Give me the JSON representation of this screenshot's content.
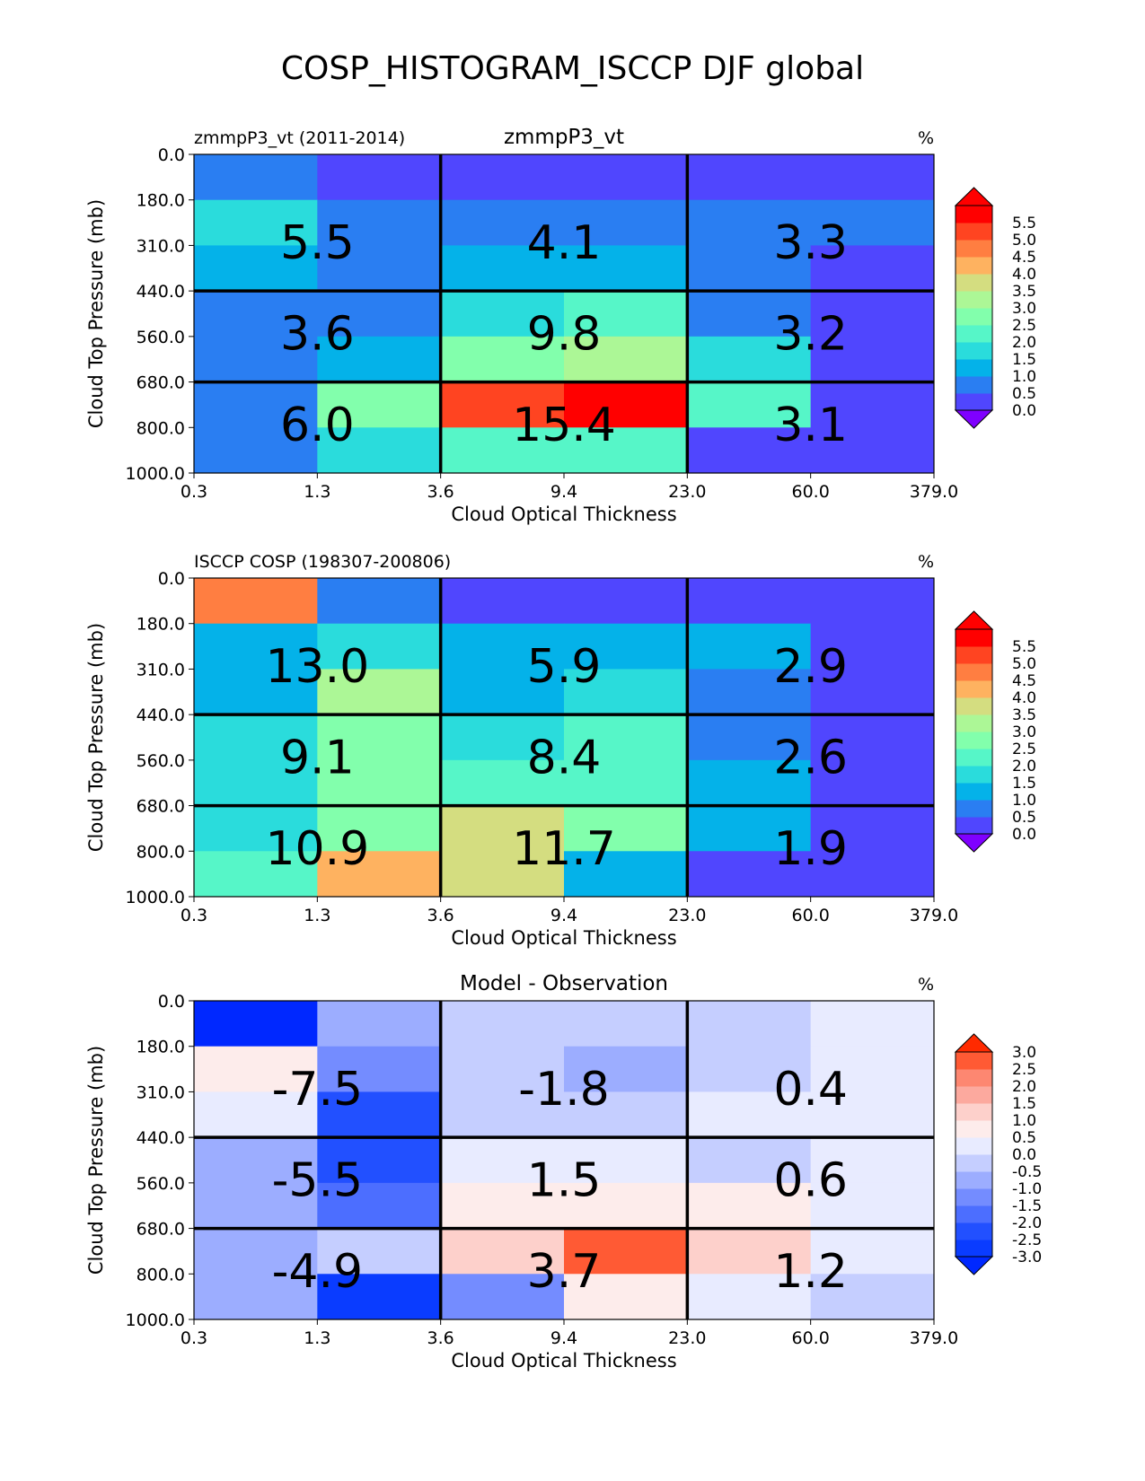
{
  "figure_title": "COSP_HISTOGRAM_ISCCP DJF global",
  "chart_data": [
    {
      "type": "heatmap",
      "left_title": "zmmpP3_vt (2011-2014)",
      "center_title": "zmmpP3_vt",
      "units": "%",
      "xlabel": "Cloud Optical Thickness",
      "ylabel": "Cloud Top Pressure (mb)",
      "x_ticks": [
        "0.3",
        "1.3",
        "3.6",
        "9.4",
        "23.0",
        "60.0",
        "379.0"
      ],
      "y_ticks": [
        "0.0",
        "180.0",
        "310.0",
        "440.0",
        "560.0",
        "680.0",
        "800.0",
        "1000.0"
      ],
      "values": [
        [
          0.8,
          0.3,
          0.3,
          0.3,
          0.3,
          0.3
        ],
        [
          1.9,
          0.8,
          0.8,
          0.8,
          0.8,
          0.8
        ],
        [
          1.4,
          0.8,
          1.3,
          1.3,
          0.8,
          0.3
        ],
        [
          0.8,
          0.8,
          1.9,
          2.4,
          0.8,
          0.3
        ],
        [
          0.8,
          1.3,
          2.8,
          3.3,
          1.9,
          0.3
        ],
        [
          0.8,
          2.8,
          5.3,
          5.8,
          2.4,
          0.3
        ],
        [
          0.8,
          1.9,
          2.3,
          2.4,
          0.3,
          0.3
        ]
      ],
      "group_totals": [
        [
          5.5,
          4.1,
          3.3
        ],
        [
          3.6,
          9.8,
          3.2
        ],
        [
          6.0,
          15.4,
          3.1
        ]
      ],
      "colorbar": {
        "levels": [
          "0.0",
          "0.5",
          "1.0",
          "1.5",
          "2.0",
          "2.5",
          "3.0",
          "3.5",
          "4.0",
          "4.5",
          "5.0",
          "5.5"
        ],
        "colors": [
          "#5046fe",
          "#2a7ef2",
          "#04b2e9",
          "#2adcdc",
          "#56f6c8",
          "#82ffac",
          "#acf796",
          "#d4dd80",
          "#feb260",
          "#ff7e41",
          "#ff4421",
          "#ff0000"
        ],
        "under": "#7f00ff",
        "over": "#ff0000",
        "vmin": 0.0,
        "step": 0.5
      }
    },
    {
      "type": "heatmap",
      "left_title": "ISCCP COSP (198307-200806)",
      "center_title": "",
      "units": "%",
      "xlabel": "Cloud Optical Thickness",
      "ylabel": "Cloud Top Pressure (mb)",
      "x_ticks": [
        "0.3",
        "1.3",
        "3.6",
        "9.4",
        "23.0",
        "60.0",
        "379.0"
      ],
      "y_ticks": [
        "0.0",
        "180.0",
        "310.0",
        "440.0",
        "560.0",
        "680.0",
        "800.0",
        "1000.0"
      ],
      "values": [
        [
          4.8,
          0.8,
          0.3,
          0.3,
          0.3,
          0.3
        ],
        [
          1.3,
          1.8,
          1.3,
          1.3,
          1.3,
          0.3
        ],
        [
          1.3,
          3.3,
          1.3,
          1.8,
          0.8,
          0.3
        ],
        [
          1.8,
          2.8,
          1.8,
          2.3,
          0.8,
          0.3
        ],
        [
          1.8,
          2.8,
          2.3,
          2.3,
          1.3,
          0.3
        ],
        [
          1.8,
          2.8,
          3.8,
          2.8,
          1.3,
          0.3
        ],
        [
          2.3,
          4.3,
          3.8,
          1.3,
          0.3,
          0.3
        ]
      ],
      "group_totals": [
        [
          13.0,
          5.9,
          2.9
        ],
        [
          9.1,
          8.4,
          2.6
        ],
        [
          10.9,
          11.7,
          1.9
        ]
      ],
      "colorbar": {
        "levels": [
          "0.0",
          "0.5",
          "1.0",
          "1.5",
          "2.0",
          "2.5",
          "3.0",
          "3.5",
          "4.0",
          "4.5",
          "5.0",
          "5.5"
        ],
        "colors": [
          "#5046fe",
          "#2a7ef2",
          "#04b2e9",
          "#2adcdc",
          "#56f6c8",
          "#82ffac",
          "#acf796",
          "#d4dd80",
          "#feb260",
          "#ff7e41",
          "#ff4421",
          "#ff0000"
        ],
        "under": "#7f00ff",
        "over": "#ff0000",
        "vmin": 0.0,
        "step": 0.5
      }
    },
    {
      "type": "heatmap",
      "left_title": "",
      "center_title": "Model - Observation",
      "units": "%",
      "xlabel": "Cloud Optical Thickness",
      "ylabel": "Cloud Top Pressure (mb)",
      "x_ticks": [
        "0.3",
        "1.3",
        "3.6",
        "9.4",
        "23.0",
        "60.0",
        "379.0"
      ],
      "y_ticks": [
        "0.0",
        "180.0",
        "310.0",
        "440.0",
        "560.0",
        "680.0",
        "800.0",
        "1000.0"
      ],
      "values": [
        [
          -4.0,
          -0.7,
          -0.2,
          -0.2,
          -0.2,
          0.2
        ],
        [
          0.7,
          -1.2,
          -0.2,
          -0.7,
          -0.2,
          0.2
        ],
        [
          0.2,
          -2.2,
          -0.2,
          -0.2,
          0.2,
          0.2
        ],
        [
          -0.7,
          -2.2,
          0.2,
          0.2,
          -0.2,
          0.2
        ],
        [
          -0.7,
          -1.7,
          0.7,
          0.7,
          0.7,
          0.2
        ],
        [
          -0.7,
          -0.2,
          1.2,
          2.7,
          1.2,
          0.2
        ],
        [
          -0.7,
          -2.7,
          -1.2,
          0.7,
          0.2,
          -0.2
        ]
      ],
      "group_totals": [
        [
          -7.5,
          -1.8,
          0.4
        ],
        [
          -5.5,
          1.5,
          0.6
        ],
        [
          -4.9,
          3.7,
          1.2
        ]
      ],
      "colorbar": {
        "levels": [
          "-3.0",
          "-2.5",
          "-2.0",
          "-1.5",
          "-1.0",
          "-0.5",
          "0.0",
          "0.5",
          "1.0",
          "1.5",
          "2.0",
          "2.5",
          "3.0"
        ],
        "colors": [
          "#0a3cff",
          "#2250ff",
          "#4c6eff",
          "#748cff",
          "#9cadff",
          "#c5ceff",
          "#e8ebff",
          "#fdeceb",
          "#fdd0cb",
          "#fca99e",
          "#fd8771",
          "#ff5a34"
        ],
        "under": "#0028ff",
        "over": "#ff2a00",
        "vmin": -3.0,
        "step": 0.5
      }
    }
  ]
}
